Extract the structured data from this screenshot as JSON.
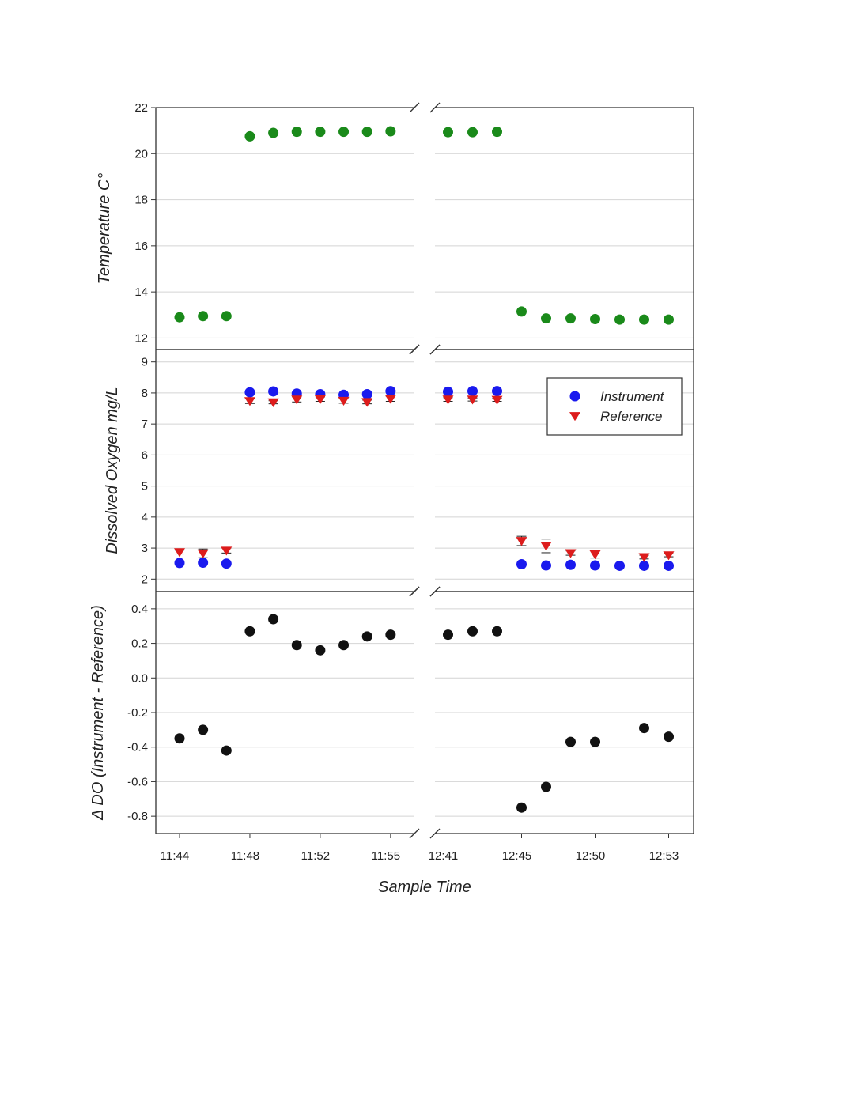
{
  "chart_data": {
    "type": "scatter",
    "x_axis": {
      "title": "Sample Time",
      "tick_labels": [
        "11:44",
        "11:48",
        "11:52",
        "11:55",
        "12:41",
        "12:45",
        "12:50",
        "12:53"
      ],
      "tick_index_positions": [
        0,
        3,
        6,
        9,
        11,
        14,
        17,
        20
      ],
      "sample_count": 21,
      "broken_axis_between_index": [
        9,
        11
      ]
    },
    "panels": [
      {
        "ylabel": "Temperature C°",
        "ylim": [
          11.5,
          22
        ],
        "yticks": [
          "12",
          "14",
          "16",
          "18",
          "20",
          "22"
        ],
        "grid": true,
        "series": [
          {
            "color": "#1a8a1a",
            "marker": "circle",
            "points": [
              {
                "i": 0,
                "y": 12.9
              },
              {
                "i": 1,
                "y": 12.95
              },
              {
                "i": 2,
                "y": 12.95
              },
              {
                "i": 3,
                "y": 20.75
              },
              {
                "i": 4,
                "y": 20.9
              },
              {
                "i": 5,
                "y": 20.95
              },
              {
                "i": 6,
                "y": 20.95
              },
              {
                "i": 7,
                "y": 20.95
              },
              {
                "i": 8,
                "y": 20.95
              },
              {
                "i": 9,
                "y": 20.97
              },
              {
                "i": 11,
                "y": 20.93
              },
              {
                "i": 12,
                "y": 20.93
              },
              {
                "i": 13,
                "y": 20.95
              },
              {
                "i": 14,
                "y": 13.15
              },
              {
                "i": 15,
                "y": 12.85
              },
              {
                "i": 16,
                "y": 12.85
              },
              {
                "i": 17,
                "y": 12.82
              },
              {
                "i": 18,
                "y": 12.8
              },
              {
                "i": 19,
                "y": 12.8
              },
              {
                "i": 20,
                "y": 12.8
              }
            ]
          }
        ]
      },
      {
        "ylabel": "Dissolved Oxygen mg/L",
        "ylim": [
          1.6,
          9.4
        ],
        "yticks": [
          "2",
          "3",
          "4",
          "5",
          "6",
          "7",
          "8",
          "9"
        ],
        "grid": true,
        "legend": {
          "position": "right",
          "entries": [
            {
              "name": "Instrument",
              "color": "#1a1aee",
              "marker": "circle"
            },
            {
              "name": "Reference",
              "color": "#dd1c1c",
              "marker": "triangle-down"
            }
          ]
        },
        "series": [
          {
            "name": "Instrument",
            "color": "#1a1aee",
            "marker": "circle",
            "points": [
              {
                "i": 0,
                "y": 2.52
              },
              {
                "i": 1,
                "y": 2.53
              },
              {
                "i": 2,
                "y": 2.5
              },
              {
                "i": 3,
                "y": 8.02
              },
              {
                "i": 4,
                "y": 8.05
              },
              {
                "i": 5,
                "y": 7.98
              },
              {
                "i": 6,
                "y": 7.96
              },
              {
                "i": 7,
                "y": 7.94
              },
              {
                "i": 8,
                "y": 7.96
              },
              {
                "i": 9,
                "y": 8.06
              },
              {
                "i": 11,
                "y": 8.04
              },
              {
                "i": 12,
                "y": 8.06
              },
              {
                "i": 13,
                "y": 8.06
              },
              {
                "i": 14,
                "y": 2.48
              },
              {
                "i": 15,
                "y": 2.44
              },
              {
                "i": 16,
                "y": 2.46
              },
              {
                "i": 17,
                "y": 2.44
              },
              {
                "i": 18,
                "y": 2.43
              },
              {
                "i": 19,
                "y": 2.43
              },
              {
                "i": 20,
                "y": 2.43
              }
            ]
          },
          {
            "name": "Reference",
            "color": "#dd1c1c",
            "marker": "triangle-down",
            "points": [
              {
                "i": 0,
                "y": 2.87,
                "err": 0.06
              },
              {
                "i": 1,
                "y": 2.83,
                "err": 0.14
              },
              {
                "i": 2,
                "y": 2.92,
                "err": 0.08
              },
              {
                "i": 3,
                "y": 7.74,
                "err": 0.08
              },
              {
                "i": 4,
                "y": 7.7,
                "err": 0.05
              },
              {
                "i": 5,
                "y": 7.79,
                "err": 0.08
              },
              {
                "i": 6,
                "y": 7.8,
                "err": 0.07
              },
              {
                "i": 7,
                "y": 7.75,
                "err": 0.08
              },
              {
                "i": 8,
                "y": 7.71,
                "err": 0.06
              },
              {
                "i": 9,
                "y": 7.81,
                "err": 0.08
              },
              {
                "i": 11,
                "y": 7.79,
                "err": 0.06
              },
              {
                "i": 12,
                "y": 7.79,
                "err": 0.05
              },
              {
                "i": 13,
                "y": 7.78,
                "err": 0.05
              },
              {
                "i": 14,
                "y": 3.23,
                "err": 0.15
              },
              {
                "i": 15,
                "y": 3.07,
                "err": 0.22
              },
              {
                "i": 16,
                "y": 2.84,
                "err": 0.07
              },
              {
                "i": 17,
                "y": 2.8,
                "err": 0.12
              },
              {
                "i": 19,
                "y": 2.71,
                "err": 0.06
              },
              {
                "i": 20,
                "y": 2.77,
                "err": 0.05
              }
            ]
          }
        ]
      },
      {
        "ylabel": "Δ DO (Instrument - Reference)",
        "ylim": [
          -0.9,
          0.5
        ],
        "yticks": [
          "-0.8",
          "-0.6",
          "-0.4",
          "-0.2",
          "0.0",
          "0.2",
          "0.4"
        ],
        "grid": true,
        "series": [
          {
            "color": "#111111",
            "marker": "circle",
            "points": [
              {
                "i": 0,
                "y": -0.35
              },
              {
                "i": 1,
                "y": -0.3
              },
              {
                "i": 2,
                "y": -0.42
              },
              {
                "i": 3,
                "y": 0.27
              },
              {
                "i": 4,
                "y": 0.34
              },
              {
                "i": 5,
                "y": 0.19
              },
              {
                "i": 6,
                "y": 0.16
              },
              {
                "i": 7,
                "y": 0.19
              },
              {
                "i": 8,
                "y": 0.24
              },
              {
                "i": 9,
                "y": 0.25
              },
              {
                "i": 11,
                "y": 0.25
              },
              {
                "i": 12,
                "y": 0.27
              },
              {
                "i": 13,
                "y": 0.27
              },
              {
                "i": 14,
                "y": -0.75
              },
              {
                "i": 15,
                "y": -0.63
              },
              {
                "i": 16,
                "y": -0.37
              },
              {
                "i": 17,
                "y": -0.37
              },
              {
                "i": 19,
                "y": -0.29
              },
              {
                "i": 20,
                "y": -0.34
              }
            ]
          }
        ]
      }
    ]
  }
}
